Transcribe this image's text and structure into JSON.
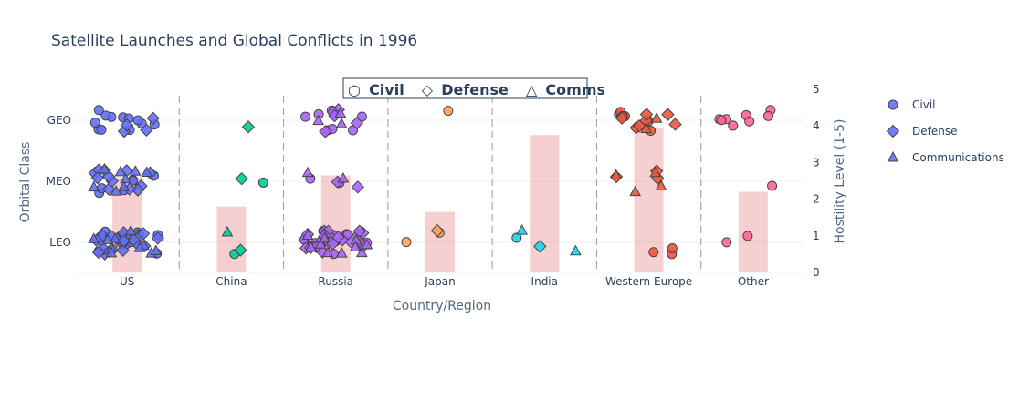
{
  "chart_data": {
    "type": "scatter",
    "title": "Satellite Launches and Global Conflicts in 1996",
    "xlabel": "Country/Region",
    "ylabel": "Orbital Class",
    "y2label": "Hostility Level (1-5)",
    "categories": [
      "US",
      "China",
      "Russia",
      "Japan",
      "India",
      "Western Europe",
      "Other"
    ],
    "orbital_classes": [
      "LEO",
      "MEO",
      "GEO"
    ],
    "y2lim": [
      0,
      5
    ],
    "y2ticks": [
      "0",
      "1",
      "2",
      "3",
      "4",
      "5"
    ],
    "hostility": [
      {
        "category": "US",
        "value": 2.6
      },
      {
        "category": "China",
        "value": 1.8
      },
      {
        "category": "Russia",
        "value": 2.65
      },
      {
        "category": "Japan",
        "value": 1.65
      },
      {
        "category": "India",
        "value": 3.75
      },
      {
        "category": "Western Europe",
        "value": 3.95
      },
      {
        "category": "Other",
        "value": 2.2
      }
    ],
    "category_colors": {
      "US": "#636efa",
      "China": "#00cc96",
      "Russia": "#ab63fa",
      "Japan": "#ffa15a",
      "India": "#19d3f3",
      "Western Europe": "#ef553b",
      "Other": "#ff6692"
    },
    "purpose_symbols": {
      "Civil": "circle",
      "Defense": "diamond",
      "Communications": "triangle-up"
    },
    "counts": [
      {
        "category": "US",
        "orbit": "LEO",
        "Civil": 14,
        "Defense": 22,
        "Communications": 10
      },
      {
        "category": "US",
        "orbit": "MEO",
        "Civil": 6,
        "Defense": 12,
        "Communications": 8
      },
      {
        "category": "US",
        "orbit": "GEO",
        "Civil": 12,
        "Defense": 4,
        "Communications": 0
      },
      {
        "category": "China",
        "orbit": "LEO",
        "Civil": 1,
        "Defense": 1,
        "Communications": 1
      },
      {
        "category": "China",
        "orbit": "MEO",
        "Civil": 1,
        "Defense": 1,
        "Communications": 0
      },
      {
        "category": "China",
        "orbit": "GEO",
        "Civil": 0,
        "Defense": 1,
        "Communications": 0
      },
      {
        "category": "Russia",
        "orbit": "LEO",
        "Civil": 12,
        "Defense": 20,
        "Communications": 14
      },
      {
        "category": "Russia",
        "orbit": "MEO",
        "Civil": 2,
        "Defense": 2,
        "Communications": 2
      },
      {
        "category": "Russia",
        "orbit": "GEO",
        "Civil": 7,
        "Defense": 5,
        "Communications": 3
      },
      {
        "category": "Japan",
        "orbit": "LEO",
        "Civil": 2,
        "Defense": 1,
        "Communications": 0
      },
      {
        "category": "Japan",
        "orbit": "MEO",
        "Civil": 0,
        "Defense": 0,
        "Communications": 0
      },
      {
        "category": "Japan",
        "orbit": "GEO",
        "Civil": 1,
        "Defense": 0,
        "Communications": 0
      },
      {
        "category": "India",
        "orbit": "LEO",
        "Civil": 1,
        "Defense": 1,
        "Communications": 2
      },
      {
        "category": "India",
        "orbit": "MEO",
        "Civil": 0,
        "Defense": 0,
        "Communications": 0
      },
      {
        "category": "India",
        "orbit": "GEO",
        "Civil": 0,
        "Defense": 0,
        "Communications": 0
      },
      {
        "category": "Western Europe",
        "orbit": "LEO",
        "Civil": 3,
        "Defense": 0,
        "Communications": 0
      },
      {
        "category": "Western Europe",
        "orbit": "MEO",
        "Civil": 0,
        "Defense": 3,
        "Communications": 4
      },
      {
        "category": "Western Europe",
        "orbit": "GEO",
        "Civil": 8,
        "Defense": 7,
        "Communications": 2
      },
      {
        "category": "Other",
        "orbit": "LEO",
        "Civil": 2,
        "Defense": 0,
        "Communications": 0
      },
      {
        "category": "Other",
        "orbit": "MEO",
        "Civil": 1,
        "Defense": 0,
        "Communications": 0
      },
      {
        "category": "Other",
        "orbit": "GEO",
        "Civil": 8,
        "Defense": 0,
        "Communications": 0
      }
    ],
    "legend": [
      {
        "label": "Civil",
        "symbol": "circle"
      },
      {
        "label": "Defense",
        "symbol": "diamond"
      },
      {
        "label": "Communications",
        "symbol": "triangle-up"
      }
    ],
    "legend_position": "right",
    "annotation": {
      "civil": "Civil",
      "defense": "Defense",
      "comms": "Comms",
      "civil_glyph": "○",
      "defense_glyph": "◇",
      "comms_glyph": "△"
    },
    "legend_marker_color": "#636efa",
    "bar_color": "rgba(228,120,120,0.35)",
    "grid": true
  }
}
